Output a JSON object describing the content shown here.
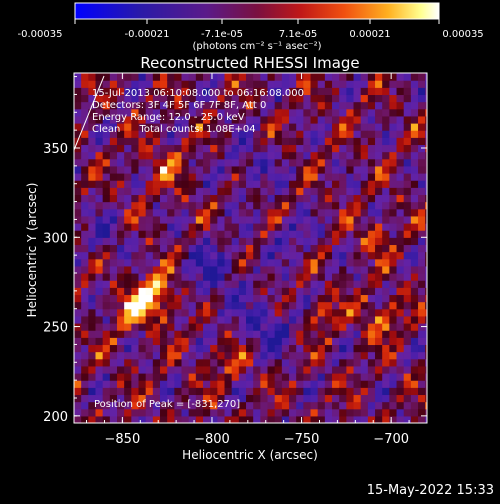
{
  "colorbar": {
    "ticks": [
      "-0.00035",
      "-0.00021",
      "-7.1e-05",
      "7.1e-05",
      "0.00021",
      "0.00035"
    ],
    "unit_label": "(photons cm⁻² s⁻¹ asec⁻²)",
    "min": -0.00035,
    "max": 0.00035
  },
  "chart_data": {
    "type": "heatmap",
    "title": "Reconstructed RHESSI Image",
    "xlabel": "Heliocentric X (arcsec)",
    "ylabel": "Heliocentric Y (arcsec)",
    "xlim": [
      -877,
      -680
    ],
    "ylim": [
      196,
      392
    ],
    "x_ticks": [
      -850,
      -800,
      -750,
      -700
    ],
    "y_ticks": [
      200,
      250,
      300,
      350
    ],
    "annotations": [
      "15-Jul-2013 06:10:08.000 to 06:16:08.000",
      "Detectors: 3F 4F 5F 6F 7F 8F, Att 0",
      "Energy Range: 12.0 - 25.0 keV",
      "Clean      Total counts: 1.08E+04"
    ],
    "peak_label": "Position of Peak = [-831,270]",
    "peak_position": [
      -831,
      270
    ],
    "total_counts": "1.08E+04",
    "colormap": "rhessi-blue-purple-red-yellow-white"
  },
  "footer": {
    "timestamp": "15-May-2022 15:33"
  },
  "colors": {
    "background": "#000000",
    "text": "#ffffff"
  }
}
